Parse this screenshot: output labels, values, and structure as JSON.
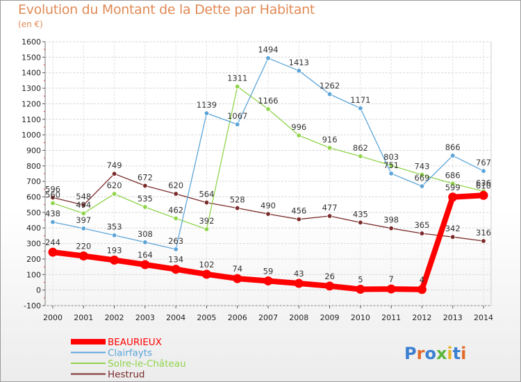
{
  "title": "Evolution du Montant de la Dette par Habitant",
  "unit_label": "(en €)",
  "logo_text": "Proxiti",
  "chart_data": {
    "type": "line",
    "title": "Evolution du Montant de la Dette par Habitant",
    "ylabel": "(en €)",
    "xlabel": "",
    "ylim": [
      -100,
      1600
    ],
    "yticks": [
      -100,
      0,
      100,
      200,
      300,
      400,
      500,
      600,
      700,
      800,
      900,
      1000,
      1100,
      1200,
      1300,
      1400,
      1500,
      1600
    ],
    "categories": [
      "2000",
      "2001",
      "2002",
      "2003",
      "2004",
      "2005",
      "2006",
      "2007",
      "2008",
      "2009",
      "2010",
      "2011",
      "2012",
      "2013",
      "2014"
    ],
    "grid": true,
    "legend_position": "bottom-left",
    "series": [
      {
        "name": "BEAURIEUX",
        "color": "#ff0000",
        "values": [
          244,
          220,
          193,
          164,
          134,
          102,
          74,
          59,
          43,
          26,
          5,
          7,
          4,
          599,
          610
        ]
      },
      {
        "name": "Clairfayts",
        "color": "#5ba4d8",
        "values": [
          438,
          397,
          353,
          308,
          263,
          1139,
          1067,
          1494,
          1413,
          1262,
          1171,
          751,
          669,
          866,
          767
        ]
      },
      {
        "name": "Solre-le-Château",
        "color": "#8fd44a",
        "values": [
          560,
          494,
          620,
          535,
          462,
          392,
          1311,
          1166,
          996,
          916,
          862,
          803,
          743,
          686,
          636
        ]
      },
      {
        "name": "Hestrud",
        "color": "#7a2a2a",
        "values": [
          596,
          548,
          749,
          672,
          620,
          564,
          528,
          490,
          456,
          477,
          435,
          398,
          365,
          342,
          316
        ]
      }
    ]
  }
}
